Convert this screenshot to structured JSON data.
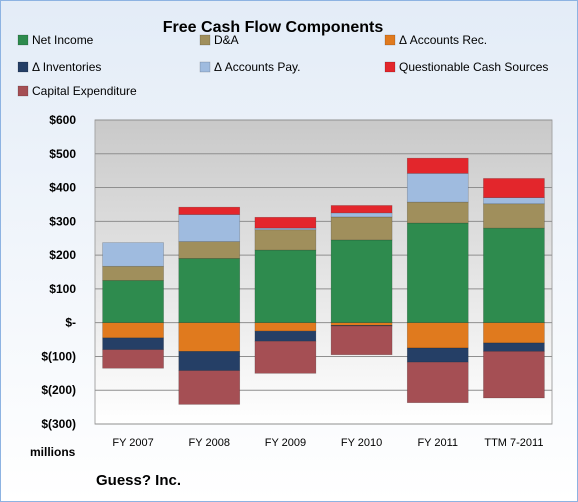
{
  "chart_data": {
    "type": "bar",
    "stacked": true,
    "title": "Free Cash Flow Components",
    "categories": [
      "FY 2007",
      "FY 2008",
      "FY 2009",
      "FY 2010",
      "FY 2011",
      "TTM 7-2011"
    ],
    "y_tick_labels": [
      "$600",
      "$500",
      "$400",
      "$300",
      "$200",
      "$100",
      "$-",
      "$(100)",
      "$(200)",
      "$(300)"
    ],
    "ylim": [
      -300,
      600
    ],
    "ylabel": "millions",
    "grid": true,
    "legend_position": "top",
    "series": [
      {
        "name": "Net Income",
        "color": "#2e8b4e",
        "values": [
          125,
          190,
          215,
          245,
          295,
          280
        ]
      },
      {
        "name": "D&A",
        "color": "#a08f5c",
        "values": [
          42,
          50,
          60,
          68,
          62,
          72
        ]
      },
      {
        "name": "Δ Accounts Rec.",
        "color": "#e07a1e",
        "values": [
          -45,
          -85,
          -25,
          -8,
          -75,
          -60
        ]
      },
      {
        "name": "Δ Inventories",
        "color": "#253f66",
        "values": [
          -35,
          -57,
          -30,
          -2,
          -42,
          -25
        ]
      },
      {
        "name": "Δ Accounts Pay.",
        "color": "#9fbbdf",
        "values": [
          70,
          80,
          5,
          12,
          85,
          18
        ]
      },
      {
        "name": "Questionable Cash Sources",
        "color": "#e3262c",
        "values": [
          0,
          22,
          32,
          22,
          45,
          57
        ]
      },
      {
        "name": "Capital Expenditure",
        "color": "#a54f54",
        "values": [
          -55,
          -100,
          -95,
          -85,
          -120,
          -138
        ]
      }
    ]
  },
  "footer": {
    "company": "Guess? Inc."
  }
}
